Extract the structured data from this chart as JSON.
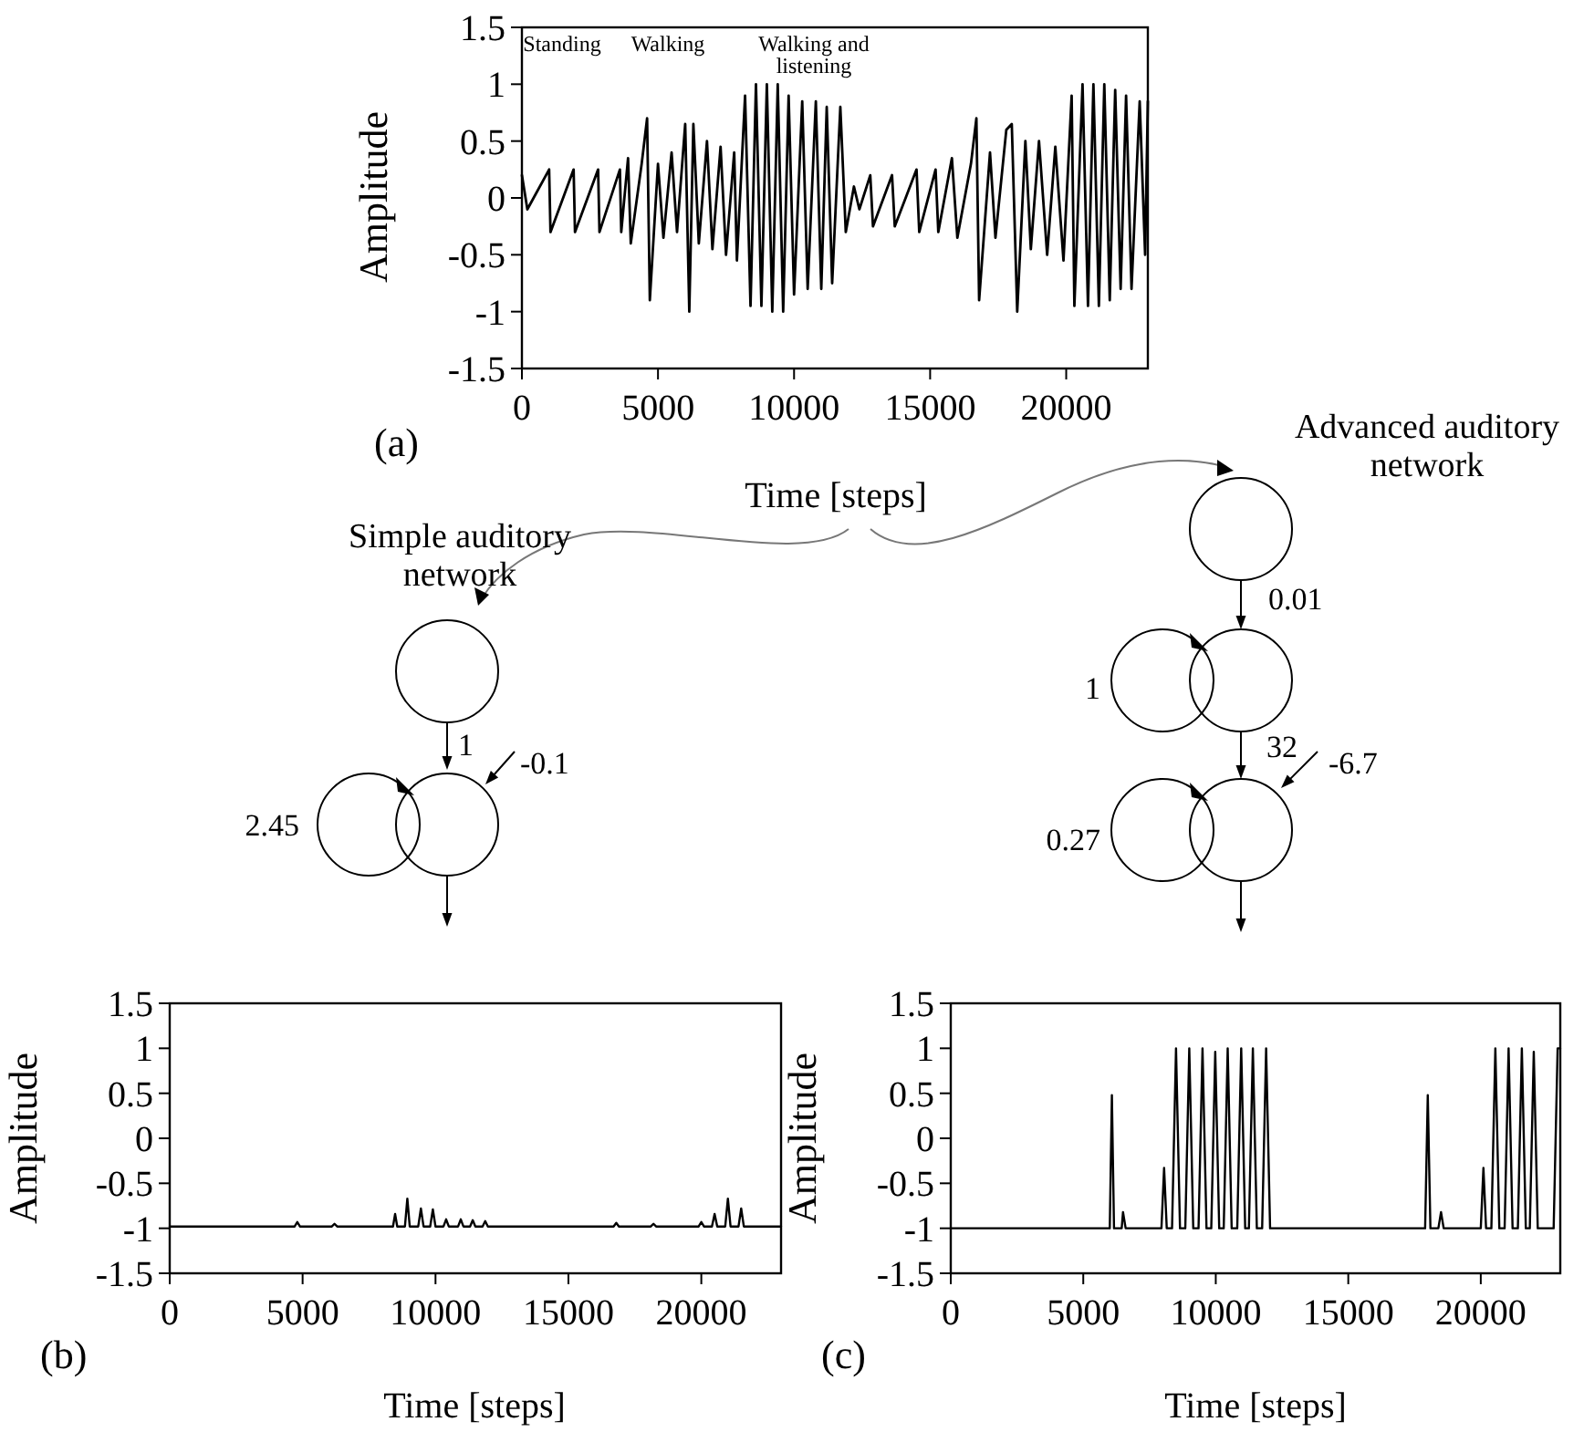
{
  "chart_data": [
    {
      "type": "line",
      "title": "(a)",
      "xlabel": "Time [steps]",
      "ylabel": "Amplitude",
      "xlim": [
        0,
        23000
      ],
      "ylim": [
        -1.5,
        1.5
      ],
      "xticks": [
        0,
        5000,
        10000,
        15000,
        20000
      ],
      "yticks": [
        -1.5,
        -1,
        -0.5,
        0,
        0.5,
        1,
        1.5
      ],
      "grid": false,
      "annotations": [
        "Standing",
        "Walking",
        "Walking and listening"
      ],
      "series": [
        {
          "color": "#000000",
          "x": [
            0,
            200,
            1000,
            1050,
            1900,
            1950,
            2800,
            2850,
            3600,
            3650,
            3900,
            4000,
            4400,
            4600,
            4700,
            5000,
            5200,
            5500,
            5700,
            6000,
            6150,
            6300,
            6500,
            6800,
            7000,
            7300,
            7500,
            7800,
            7900,
            8200,
            8400,
            8600,
            8800,
            9000,
            9200,
            9400,
            9600,
            9800,
            10000,
            10300,
            10500,
            10800,
            11000,
            11200,
            11400,
            11700,
            11900,
            12200,
            12400,
            12800,
            12900,
            13600,
            13700,
            14500,
            14600,
            15200,
            15300,
            15800,
            16000,
            16500,
            16700,
            16800,
            17200,
            17400,
            17800,
            18000,
            18200,
            18500,
            18700,
            19000,
            19300,
            19600,
            19900,
            20200,
            20300,
            20600,
            20800,
            21000,
            21200,
            21400,
            21600,
            21800,
            22000,
            22200,
            22400,
            22700,
            22900,
            23000
          ],
          "values": [
            0.2,
            -0.1,
            0.25,
            -0.3,
            0.25,
            -0.3,
            0.25,
            -0.3,
            0.25,
            -0.3,
            0.35,
            -0.4,
            0.3,
            0.7,
            -0.9,
            0.3,
            -0.35,
            0.4,
            -0.3,
            0.65,
            -1,
            0.65,
            -0.4,
            0.5,
            -0.45,
            0.45,
            -0.5,
            0.4,
            -0.55,
            0.9,
            -0.95,
            1,
            -0.95,
            1,
            -1,
            1,
            -1,
            0.9,
            -0.85,
            0.85,
            -0.8,
            0.85,
            -0.8,
            0.8,
            -0.75,
            0.8,
            -0.3,
            0.1,
            -0.1,
            0.2,
            -0.25,
            0.2,
            -0.25,
            0.25,
            -0.3,
            0.25,
            -0.3,
            0.35,
            -0.35,
            0.3,
            0.7,
            -0.9,
            0.4,
            -0.35,
            0.6,
            0.65,
            -1,
            0.5,
            -0.45,
            0.5,
            -0.5,
            0.45,
            -0.55,
            0.9,
            -0.95,
            1,
            -0.95,
            1,
            -0.95,
            1,
            -0.9,
            0.95,
            -0.8,
            0.9,
            -0.8,
            0.85,
            -0.5,
            0.85
          ]
        }
      ]
    },
    {
      "type": "line",
      "title": "(b)",
      "xlabel": "Time [steps]",
      "ylabel": "Amplitude",
      "xlim": [
        0,
        23000
      ],
      "ylim": [
        -1.5,
        1.5
      ],
      "xticks": [
        0,
        5000,
        10000,
        15000,
        20000
      ],
      "yticks": [
        -1.5,
        -1,
        -0.5,
        0,
        0.5,
        1,
        1.5
      ],
      "grid": false,
      "annotations": [
        "Simple auditory network",
        "1",
        "-0.1",
        "2.45"
      ],
      "series": [
        {
          "color": "#000000",
          "x": [
            0,
            4700,
            4800,
            4900,
            6100,
            6200,
            6300,
            8400,
            8480,
            8560,
            8850,
            8940,
            9030,
            9350,
            9450,
            9550,
            9800,
            9900,
            10000,
            10300,
            10400,
            10500,
            10850,
            10950,
            11050,
            11300,
            11400,
            11500,
            11770,
            11870,
            11970,
            16700,
            16800,
            16900,
            18100,
            18200,
            18300,
            19900,
            20000,
            20100,
            20400,
            20500,
            20600,
            20900,
            21000,
            21100,
            21400,
            21500,
            21600,
            23000
          ],
          "values": [
            -0.98,
            -0.98,
            -0.93,
            -0.98,
            -0.98,
            -0.95,
            -0.98,
            -0.98,
            -0.84,
            -0.98,
            -0.98,
            -0.67,
            -0.98,
            -0.98,
            -0.78,
            -0.98,
            -0.98,
            -0.79,
            -0.98,
            -0.98,
            -0.9,
            -0.98,
            -0.98,
            -0.9,
            -0.98,
            -0.98,
            -0.91,
            -0.98,
            -0.98,
            -0.92,
            -0.98,
            -0.98,
            -0.94,
            -0.98,
            -0.98,
            -0.95,
            -0.98,
            -0.98,
            -0.93,
            -0.98,
            -0.98,
            -0.84,
            -0.98,
            -0.98,
            -0.67,
            -0.98,
            -0.98,
            -0.78,
            -0.98,
            -0.98
          ]
        }
      ]
    },
    {
      "type": "line",
      "title": "(c)",
      "xlabel": "Time [steps]",
      "ylabel": "Amplitude",
      "xlim": [
        0,
        23000
      ],
      "ylim": [
        -1.5,
        1.5
      ],
      "xticks": [
        0,
        5000,
        10000,
        15000,
        20000
      ],
      "yticks": [
        -1.5,
        -1,
        -0.5,
        0,
        0.5,
        1,
        1.5
      ],
      "grid": false,
      "annotations": [
        "Advanced auditory network",
        "0.01",
        "1",
        "32",
        "-6.7",
        "0.27"
      ],
      "series": [
        {
          "color": "#000000",
          "x": [
            0,
            6000,
            6080,
            6160,
            6450,
            6500,
            6600,
            7950,
            8050,
            8150,
            8350,
            8500,
            8650,
            8850,
            9000,
            9150,
            9350,
            9500,
            9650,
            9830,
            9980,
            10130,
            10300,
            10450,
            10600,
            10810,
            10960,
            11110,
            11250,
            11400,
            11550,
            11750,
            11900,
            12050,
            17900,
            18000,
            18100,
            18400,
            18500,
            18600,
            20000,
            20100,
            20200,
            20400,
            20550,
            20700,
            20900,
            21050,
            21200,
            21400,
            21550,
            21700,
            21850,
            22000,
            22150,
            22750,
            22900,
            23000
          ],
          "values": [
            -1,
            -1,
            0.48,
            -1,
            -1,
            -0.82,
            -1,
            -1,
            -0.33,
            -1,
            -1,
            1,
            -1,
            -1,
            1,
            -1,
            -1,
            1,
            -1,
            -1,
            0.96,
            -1,
            -1,
            1,
            -1,
            -1,
            1,
            -1,
            -1,
            1,
            -1,
            -1,
            1,
            -1,
            -1,
            0.48,
            -1,
            -1,
            -0.82,
            -1,
            -1,
            -0.33,
            -1,
            -1,
            1,
            -1,
            -1,
            1,
            -1,
            -1,
            1,
            -1,
            -1,
            0.96,
            -1,
            -1,
            1,
            1
          ]
        }
      ]
    }
  ]
}
